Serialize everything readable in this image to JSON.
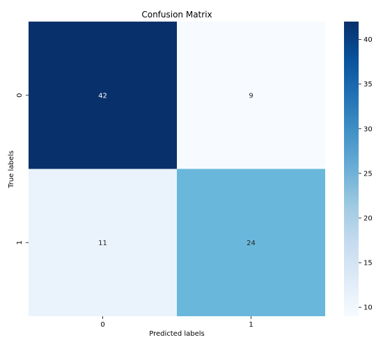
{
  "chart_data": {
    "type": "heatmap",
    "title": "Confusion Matrix",
    "xlabel": "Predicted labels",
    "ylabel": "True labels",
    "x_categories": [
      "0",
      "1"
    ],
    "y_categories": [
      "0",
      "1"
    ],
    "values": [
      [
        42,
        9
      ],
      [
        11,
        24
      ]
    ],
    "colormap": "Blues",
    "color_range": [
      9,
      42
    ],
    "colorbar_ticks": [
      10,
      15,
      20,
      25,
      30,
      35,
      40
    ],
    "cell_colors": [
      [
        "#08306b",
        "#f7fbff"
      ],
      [
        "#eaf3fb",
        "#69b8dc"
      ]
    ],
    "annotation_colors": [
      [
        "#ffffff",
        "#262626"
      ],
      [
        "#262626",
        "#262626"
      ]
    ],
    "grid": false,
    "colorbar_position": "right"
  }
}
